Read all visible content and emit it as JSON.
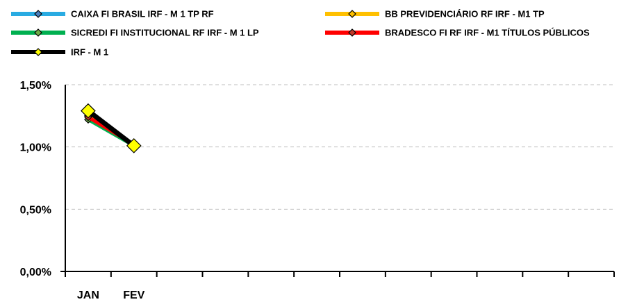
{
  "chart_data": {
    "type": "line",
    "title": "",
    "xlabel": "",
    "ylabel": "",
    "categories": [
      "JAN",
      "FEV"
    ],
    "category_slots": 12,
    "ylim": [
      0,
      1.5
    ],
    "yticks": [
      0,
      0.5,
      1.0,
      1.5
    ],
    "ytick_labels": [
      "0,00%",
      "0,50%",
      "1,00%",
      "1,50%"
    ],
    "grid": true,
    "legend_position": "top",
    "series": [
      {
        "name": "CAIXA FI BRASIL IRF - M 1 TP RF",
        "values": [
          1.25,
          1.02
        ],
        "color": "#29ABE2",
        "marker_fill": "#4A7EBB"
      },
      {
        "name": "BB PREVIDENCIÁRIO RF IRF - M1 TP",
        "values": [
          1.25,
          1.02
        ],
        "color": "#FFC000",
        "marker_fill": "#FFC000"
      },
      {
        "name": "SICREDI FI INSTITUCIONAL RF IRF - M 1 LP",
        "values": [
          1.22,
          1.01
        ],
        "color": "#00B050",
        "marker_fill": "#70AD47"
      },
      {
        "name": "BRADESCO FI RF IRF - M1 TÍTULOS PÚBLICOS",
        "values": [
          1.24,
          1.02
        ],
        "color": "#FF0000",
        "marker_fill": "#C0392B"
      },
      {
        "name": "IRF - M 1",
        "values": [
          1.29,
          1.01
        ],
        "color": "#000000",
        "marker_fill": "#FFFF00"
      }
    ]
  }
}
